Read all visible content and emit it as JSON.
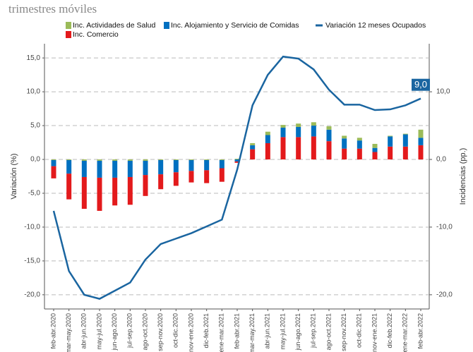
{
  "chart_data": {
    "type": "bar",
    "title": "trimestres móviles",
    "y_label": "Variación (%)",
    "y2_label": "Incidencias (pp.)",
    "categories": [
      "feb-abr.2020",
      "mar-may.2020",
      "abr-jun.2020",
      "may-jul.2020",
      "jun-ago.2020",
      "jul-sep.2020",
      "ago-oct.2020",
      "sep-nov.2020",
      "oct-dic.2020",
      "nov-ene.2020",
      "dic-feb.2021",
      "ene-mar.2021",
      "feb-abr.2021",
      "mar-may.2021",
      "abr-jun.2021",
      "may-jul.2021",
      "jun-ago.2021",
      "jul-sep.2021",
      "ago-oct.2021",
      "sep-nov.2021",
      "oct-dic.2021",
      "nov-ene.2021",
      "dic-feb.2022",
      "ene-mar.2022",
      "feb-abr.2022"
    ],
    "series": [
      {
        "name": "Inc. Actividades de Salud",
        "color": "#9bbb59",
        "axis": "y2",
        "values": [
          -0.1,
          -0.1,
          -0.2,
          -0.2,
          -0.2,
          -0.2,
          -0.2,
          -0.1,
          -0.1,
          -0.1,
          -0.1,
          -0.1,
          0.1,
          0.3,
          0.5,
          0.4,
          0.5,
          0.5,
          0.5,
          0.4,
          0.4,
          0.6,
          0.1,
          0.1,
          1.2
        ]
      },
      {
        "name": "Inc. Alojamiento y Servicio de Comidas",
        "color": "#0070c0",
        "axis": "y2",
        "values": [
          -0.9,
          -2.0,
          -2.4,
          -2.5,
          -2.5,
          -2.4,
          -2.1,
          -2.1,
          -1.8,
          -1.6,
          -1.5,
          -1.2,
          -0.3,
          0.6,
          1.2,
          1.4,
          1.5,
          1.6,
          1.7,
          1.5,
          1.2,
          0.6,
          1.5,
          1.8,
          1.1
        ]
      },
      {
        "name": "Inc. Comercio",
        "color": "#e31a1c",
        "axis": "y2",
        "values": [
          -1.8,
          -3.8,
          -4.7,
          -4.9,
          -4.1,
          -4.1,
          -3.1,
          -2.2,
          -2.0,
          -1.7,
          -1.9,
          -2.0,
          -0.2,
          1.5,
          2.4,
          3.3,
          3.3,
          3.4,
          2.7,
          1.6,
          1.6,
          1.1,
          1.9,
          1.9,
          2.1
        ]
      },
      {
        "name": "Variación 12 meses Ocupados",
        "color": "#1a65a0",
        "type": "line",
        "values": [
          -7.6,
          -16.5,
          -20.0,
          -20.6,
          -19.4,
          -18.2,
          -14.8,
          -12.5,
          -11.7,
          -10.9,
          -9.9,
          -8.9,
          -1.5,
          8.0,
          12.5,
          15.2,
          14.9,
          13.3,
          10.3,
          8.1,
          8.1,
          7.3,
          7.4,
          8.0,
          9.0
        ],
        "value_labels": [
          null,
          null,
          null,
          null,
          null,
          null,
          null,
          null,
          null,
          null,
          null,
          null,
          null,
          null,
          null,
          null,
          null,
          null,
          null,
          null,
          null,
          null,
          null,
          null,
          "9,0"
        ]
      }
    ],
    "ylim": [
      -22.1,
      17.1
    ],
    "y2lim": [
      -22.1,
      17.1
    ],
    "yticks": [
      {
        "value": 15,
        "label": "15,0"
      },
      {
        "value": 10,
        "label": "10,0"
      },
      {
        "value": 5,
        "label": "5,0"
      },
      {
        "value": 0,
        "label": "0,0"
      },
      {
        "value": -5,
        "label": "-5,0"
      },
      {
        "value": -10,
        "label": "-10,0"
      },
      {
        "value": -15,
        "label": "-15,0"
      },
      {
        "value": -20,
        "label": "-20,0"
      }
    ],
    "y2ticks": [
      {
        "value": 10,
        "label": "10,0"
      },
      {
        "value": 0,
        "label": "0,0"
      },
      {
        "value": -10,
        "label": "-10,0"
      },
      {
        "value": -20,
        "label": "-20,0"
      }
    ],
    "grid": true
  }
}
